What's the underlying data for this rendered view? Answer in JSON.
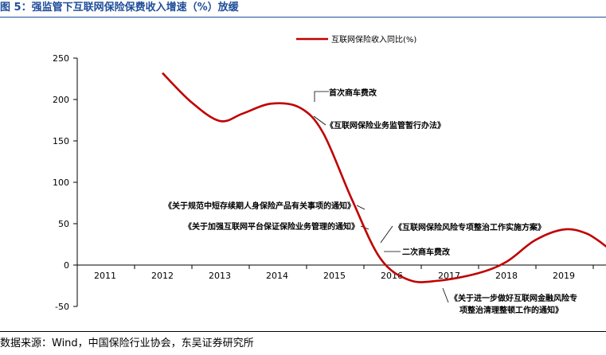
{
  "figure": {
    "title": "图 5：强监管下互联网保险保费收入增速（%）放缓",
    "source": "数据来源：Wind，中国保险行业协会，东吴证券研究所"
  },
  "chart_data": {
    "type": "line",
    "title": "",
    "xlabel": "",
    "ylabel": "",
    "categories": [
      "2011",
      "2012",
      "2013",
      "2014",
      "2015",
      "2016",
      "2017",
      "2018",
      "2019"
    ],
    "yticks": [
      -50,
      0,
      50,
      100,
      150,
      200,
      250
    ],
    "ylim": [
      -50,
      250
    ],
    "grid": false,
    "legend_position": "top-right",
    "series": [
      {
        "name": "互联网保险收入同比(%)",
        "color": "#c00000",
        "points": [
          {
            "x": 2012.0,
            "y": 232
          },
          {
            "x": 2012.5,
            "y": 197
          },
          {
            "x": 2013.0,
            "y": 174
          },
          {
            "x": 2013.4,
            "y": 183
          },
          {
            "x": 2013.9,
            "y": 195
          },
          {
            "x": 2014.4,
            "y": 190
          },
          {
            "x": 2014.8,
            "y": 160
          },
          {
            "x": 2015.3,
            "y": 80
          },
          {
            "x": 2015.8,
            "y": 8
          },
          {
            "x": 2016.3,
            "y": -18
          },
          {
            "x": 2016.8,
            "y": -19
          },
          {
            "x": 2017.5,
            "y": -10
          },
          {
            "x": 2018.0,
            "y": 4
          },
          {
            "x": 2018.5,
            "y": 30
          },
          {
            "x": 2019.0,
            "y": 43
          },
          {
            "x": 2019.4,
            "y": 38
          },
          {
            "x": 2019.75,
            "y": 22
          }
        ]
      }
    ],
    "annotations": [
      {
        "text": "首次商车费改",
        "x": 2015.0,
        "y": 169
      },
      {
        "text": "《互联网保险业务监管暂行办法》",
        "x": 2015.25,
        "y": 169
      },
      {
        "text": "《关于规范中短存续期人身保险产品有关事项的通知》",
        "x": 2015.4,
        "y": 70
      },
      {
        "text": "《关于加强互联网平台保证保险业务管理的通知》",
        "x": 2015.45,
        "y": 46
      },
      {
        "text": "《互联网保险风险专项整治工作实施方案》",
        "x": 2015.9,
        "y": 30
      },
      {
        "text": "二次商车费改",
        "x": 2016.0,
        "y": 10
      },
      {
        "text": "《关于进一步做好互联网金融风险专",
        "x": 2016.8,
        "y": -20
      },
      {
        "text": "项整治清理整顿工作的通知》",
        "x": 2016.8,
        "y": -20
      }
    ]
  }
}
